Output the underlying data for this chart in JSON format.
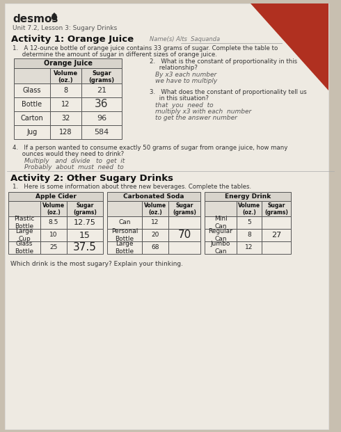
{
  "bg_color": "#c8bfb0",
  "paper_color": "#eeeae2",
  "red_color": "#b03020",
  "header_logo": "desmos",
  "header_subtitle": "Unit 7.2, Lesson 3: Sugary Drinks",
  "activity1_title": "Activity 1: Orange Juice",
  "name_label": "Name(s) Alts  Saquanda",
  "q1_text1": "1.   A 12-ounce bottle of orange juice contains 33 grams of sugar. Complete the table to",
  "q1_text2": "     determine the amount of sugar in different sizes of orange juice.",
  "oj_table_title": "Orange Juice",
  "oj_rows": [
    [
      "Glass",
      "8",
      "21"
    ],
    [
      "Bottle",
      "12",
      "36"
    ],
    [
      "Carton",
      "32",
      "96"
    ],
    [
      "Jug",
      "128",
      "584"
    ]
  ],
  "q2_text1": "2.   What is the constant of proportionality in this",
  "q2_text2": "     relationship?",
  "q2_ans1": "By x3 each number",
  "q2_ans2": "we have to multiply",
  "q3_text1": "3.   What does the constant of proportionality tell us",
  "q3_text2": "     in this situation?",
  "q3_ans1": "that  you  need  to",
  "q3_ans2": "multiply x3 with each  number",
  "q3_ans3": "to get the answer number",
  "q4_text1": "4.   If a person wanted to consume exactly 50 grams of sugar from orange juice, how many",
  "q4_text2": "     ounces would they need to drink?",
  "q4_ans1": "Multiply   and  divide   to  get  it",
  "q4_ans2": "Probably  about  must  need  to",
  "activity2_title": "Activity 2: Other Sugary Drinks",
  "a2_q1": "1.   Here is some information about three new beverages. Complete the tables.",
  "apple_title": "Apple Cider",
  "apple_rows": [
    [
      "Plastic\nBottle",
      "8.5",
      "12.75"
    ],
    [
      "Large\nCup",
      "10",
      "15"
    ],
    [
      "Glass\nBottle",
      "25",
      "37.5"
    ]
  ],
  "soda_title": "Carbonated Soda",
  "soda_rows": [
    [
      "Can",
      "12",
      ""
    ],
    [
      "Personal\nBottle",
      "20",
      "70"
    ],
    [
      "Large\nBottle",
      "68",
      ""
    ]
  ],
  "energy_title": "Energy Drink",
  "energy_rows": [
    [
      "Mini\nCan",
      "5",
      ""
    ],
    [
      "Regular\nCan",
      "8",
      "27"
    ],
    [
      "Jumbo\nCan",
      "12",
      ""
    ]
  ],
  "a2_q2": "Which drink is the most sugary? Explain your thinking."
}
